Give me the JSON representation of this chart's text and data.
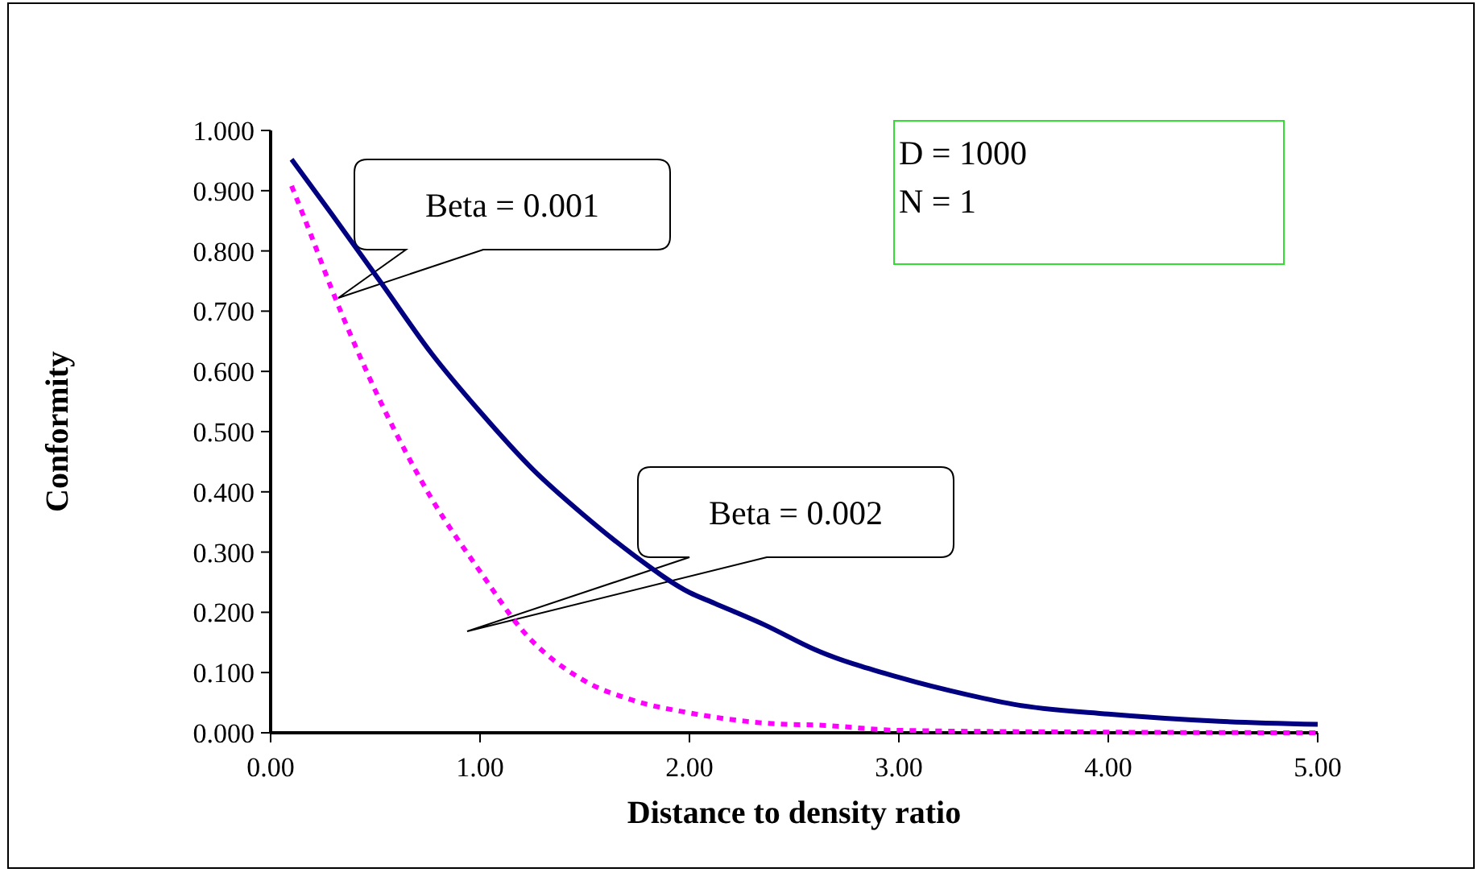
{
  "chart_data": {
    "type": "line",
    "xlabel": "Distance to density ratio",
    "ylabel": "Conformity",
    "xlim": [
      0,
      5
    ],
    "xticks": [
      {
        "value": 0,
        "label": "0.00"
      },
      {
        "value": 1,
        "label": "1.00"
      },
      {
        "value": 2,
        "label": "2.00"
      },
      {
        "value": 3,
        "label": "3.00"
      },
      {
        "value": 4,
        "label": "4.00"
      },
      {
        "value": 5,
        "label": "5.00"
      }
    ],
    "ylim": [
      0,
      1
    ],
    "yticks": [
      {
        "value": 0,
        "label": "0.000"
      },
      {
        "value": 0.1,
        "label": "0.100"
      },
      {
        "value": 0.2,
        "label": "0.200"
      },
      {
        "value": 0.3,
        "label": "0.300"
      },
      {
        "value": 0.4,
        "label": "0.400"
      },
      {
        "value": 0.5,
        "label": "0.500"
      },
      {
        "value": 0.6,
        "label": "0.600"
      },
      {
        "value": 0.7,
        "label": "0.700"
      },
      {
        "value": 0.8,
        "label": "0.800"
      },
      {
        "value": 0.9,
        "label": "0.900"
      },
      {
        "value": 1,
        "label": "1.000"
      }
    ],
    "grid": false,
    "series": [
      {
        "color": "#000080",
        "line_style": "solid",
        "x": [
          0.1,
          0.29,
          0.53,
          0.77,
          1.0,
          1.25,
          1.49,
          1.73,
          2.0,
          2.12,
          2.36,
          2.6,
          3.0,
          3.33,
          3.57,
          4.0,
          4.53,
          5.0
        ],
        "values": [
          0.952,
          0.862,
          0.746,
          0.629,
          0.533,
          0.438,
          0.363,
          0.296,
          0.233,
          0.215,
          0.179,
          0.138,
          0.092,
          0.063,
          0.046,
          0.031,
          0.019,
          0.014
        ]
      },
      {
        "color": "#ff00ff",
        "line_style": "dotted",
        "x": [
          0.1,
          0.19,
          0.29,
          0.41,
          0.53,
          0.65,
          0.77,
          1.01,
          1.2,
          1.49,
          1.73,
          2.0,
          2.46,
          2.6,
          3.0,
          4.0,
          5.0
        ],
        "values": [
          0.908,
          0.829,
          0.738,
          0.638,
          0.546,
          0.463,
          0.388,
          0.263,
          0.171,
          0.088,
          0.054,
          0.033,
          0.014,
          0.013,
          0.004,
          0.001,
          0
        ]
      }
    ],
    "annotations": [
      "Beta = 0.001",
      "Beta = 0.002",
      "D = 1000",
      "N = 1"
    ]
  }
}
